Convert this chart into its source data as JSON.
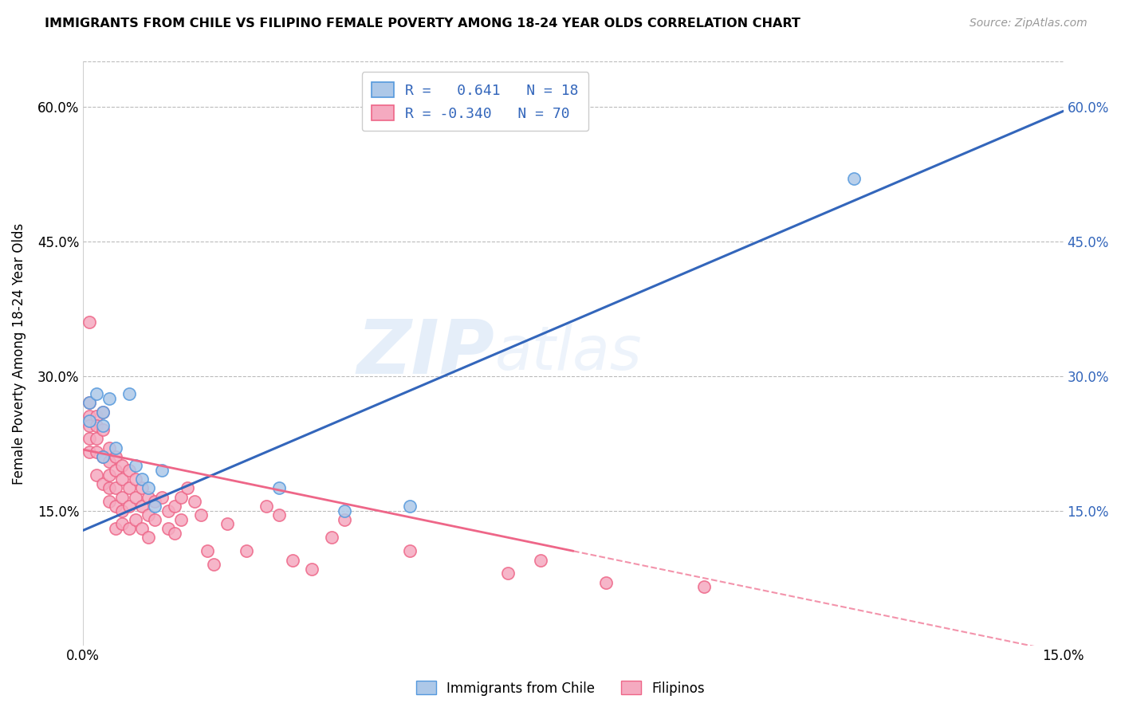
{
  "title": "IMMIGRANTS FROM CHILE VS FILIPINO FEMALE POVERTY AMONG 18-24 YEAR OLDS CORRELATION CHART",
  "source": "Source: ZipAtlas.com",
  "ylabel": "Female Poverty Among 18-24 Year Olds",
  "xlim": [
    0.0,
    0.15
  ],
  "ylim": [
    0.0,
    0.65
  ],
  "y_tick_vals": [
    0.15,
    0.3,
    0.45,
    0.6
  ],
  "y_tick_labels": [
    "15.0%",
    "30.0%",
    "45.0%",
    "60.0%"
  ],
  "x_tick_vals": [
    0.0,
    0.15
  ],
  "x_tick_labels": [
    "0.0%",
    "15.0%"
  ],
  "chile_color": "#adc8e8",
  "chile_edge_color": "#5599dd",
  "filipino_color": "#f5aac0",
  "filipino_edge_color": "#ee6688",
  "legend_R_chile": "0.641",
  "legend_N_chile": "18",
  "legend_R_filipino": "-0.340",
  "legend_N_filipino": "70",
  "legend_label_chile": "Immigrants from Chile",
  "legend_label_filipino": "Filipinos",
  "trendline_chile_color": "#3366bb",
  "trendline_filipino_color": "#ee6688",
  "watermark_zip": "ZIP",
  "watermark_atlas": "atlas",
  "background_color": "#ffffff",
  "grid_color": "#bbbbbb",
  "chile_x": [
    0.001,
    0.001,
    0.002,
    0.003,
    0.003,
    0.003,
    0.004,
    0.005,
    0.007,
    0.008,
    0.009,
    0.01,
    0.011,
    0.012,
    0.03,
    0.04,
    0.05,
    0.118
  ],
  "chile_y": [
    0.27,
    0.25,
    0.28,
    0.26,
    0.245,
    0.21,
    0.275,
    0.22,
    0.28,
    0.2,
    0.185,
    0.175,
    0.155,
    0.195,
    0.175,
    0.15,
    0.155,
    0.52
  ],
  "filipino_x": [
    0.001,
    0.001,
    0.001,
    0.001,
    0.001,
    0.001,
    0.002,
    0.002,
    0.002,
    0.002,
    0.002,
    0.003,
    0.003,
    0.003,
    0.003,
    0.004,
    0.004,
    0.004,
    0.004,
    0.004,
    0.005,
    0.005,
    0.005,
    0.005,
    0.005,
    0.006,
    0.006,
    0.006,
    0.006,
    0.006,
    0.007,
    0.007,
    0.007,
    0.007,
    0.008,
    0.008,
    0.008,
    0.009,
    0.009,
    0.009,
    0.01,
    0.01,
    0.01,
    0.011,
    0.011,
    0.012,
    0.013,
    0.013,
    0.014,
    0.014,
    0.015,
    0.015,
    0.016,
    0.017,
    0.018,
    0.019,
    0.02,
    0.022,
    0.025,
    0.028,
    0.03,
    0.032,
    0.035,
    0.038,
    0.04,
    0.05,
    0.065,
    0.07,
    0.08,
    0.095
  ],
  "filipino_y": [
    0.27,
    0.255,
    0.245,
    0.23,
    0.215,
    0.36,
    0.255,
    0.245,
    0.23,
    0.215,
    0.19,
    0.26,
    0.24,
    0.21,
    0.18,
    0.22,
    0.205,
    0.19,
    0.175,
    0.16,
    0.21,
    0.195,
    0.175,
    0.155,
    0.13,
    0.2,
    0.185,
    0.165,
    0.15,
    0.135,
    0.195,
    0.175,
    0.155,
    0.13,
    0.185,
    0.165,
    0.14,
    0.175,
    0.155,
    0.13,
    0.165,
    0.145,
    0.12,
    0.16,
    0.14,
    0.165,
    0.15,
    0.13,
    0.155,
    0.125,
    0.165,
    0.14,
    0.175,
    0.16,
    0.145,
    0.105,
    0.09,
    0.135,
    0.105,
    0.155,
    0.145,
    0.095,
    0.085,
    0.12,
    0.14,
    0.105,
    0.08,
    0.095,
    0.07,
    0.065
  ],
  "trendline_chile_x0": 0.0,
  "trendline_chile_y0": 0.128,
  "trendline_chile_x1": 0.15,
  "trendline_chile_y1": 0.595,
  "trendline_filipino_x0": 0.0,
  "trendline_filipino_y0": 0.218,
  "trendline_filipino_x1": 0.075,
  "trendline_filipino_y1": 0.105,
  "trendline_filipino_dash_x0": 0.075,
  "trendline_filipino_dash_y0": 0.105,
  "trendline_filipino_dash_x1": 0.15,
  "trendline_filipino_dash_y1": -0.008
}
